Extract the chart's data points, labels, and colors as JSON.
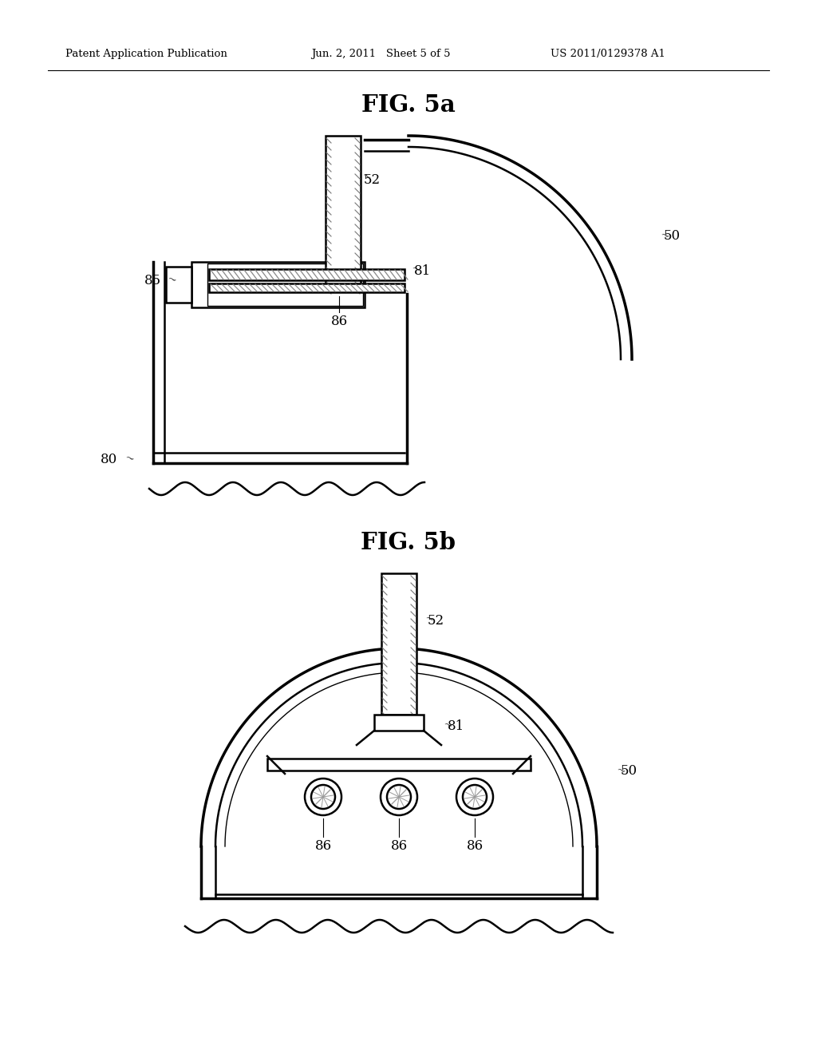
{
  "bg_color": "#ffffff",
  "header_left": "Patent Application Publication",
  "header_center": "Jun. 2, 2011   Sheet 5 of 5",
  "header_right": "US 2011/0129378 A1",
  "fig5a_title": "FIG. 5a",
  "fig5b_title": "FIG. 5b",
  "line_color": "#000000",
  "lw_main": 1.8,
  "lw_thick": 2.5,
  "lw_thin": 1.0
}
